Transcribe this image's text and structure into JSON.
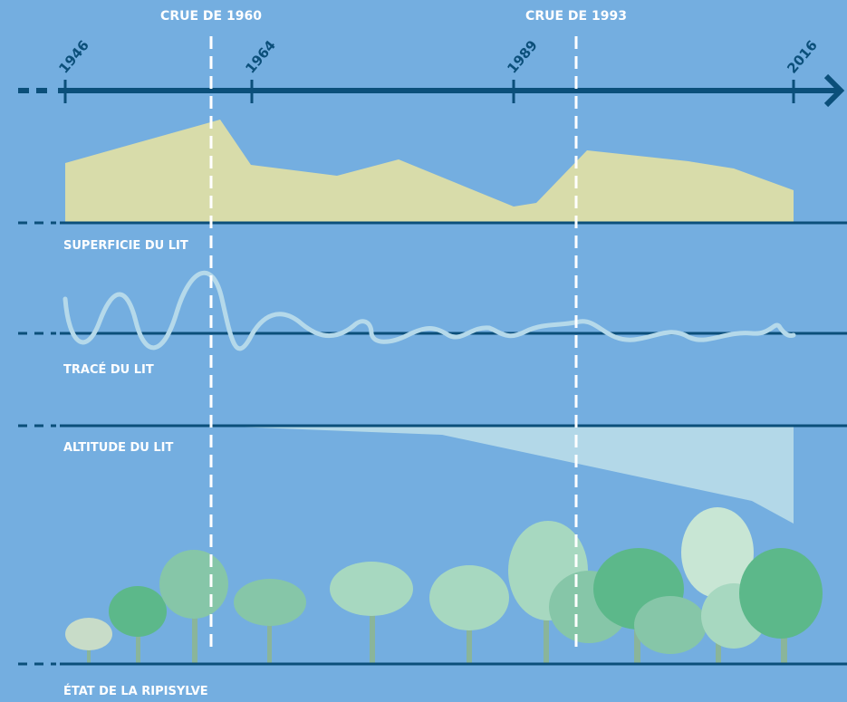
{
  "floods": [
    "CRUE DE 1960",
    "CRUE DE 1993"
  ],
  "years": [
    "1946",
    "1964",
    "1989",
    "2016"
  ],
  "sections": [
    "SUPERFICIE DU LIT",
    "TRACÉ DU LIT",
    "ALTITUDE DU LIT",
    "ÉTAT DE LA RIPISYLVE"
  ]
}
